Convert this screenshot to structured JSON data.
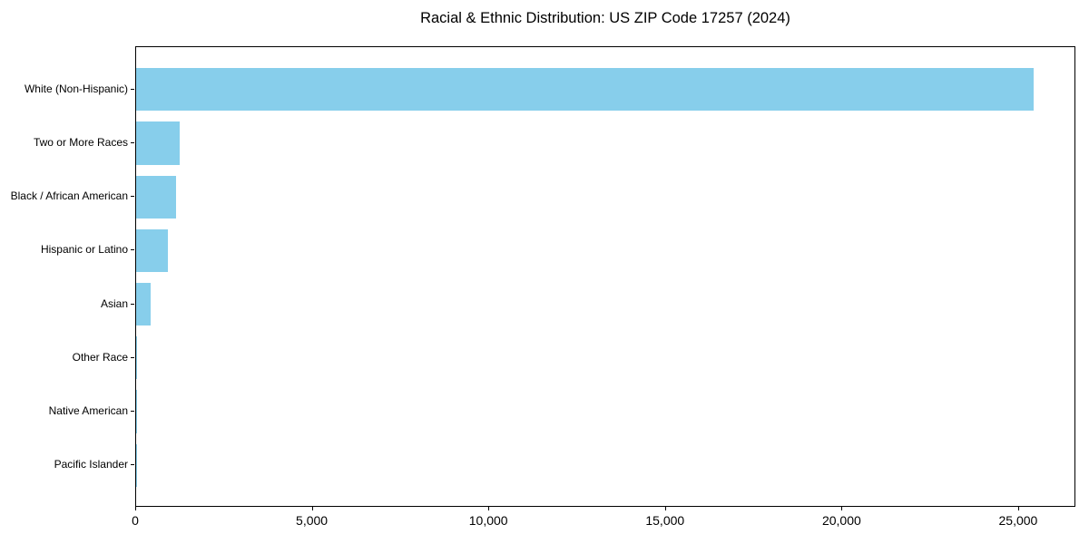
{
  "chart_data": {
    "type": "bar",
    "orientation": "horizontal",
    "title": "Racial & Ethnic Distribution: US ZIP Code 17257 (2024)",
    "categories": [
      "White (Non-Hispanic)",
      "Two or More Races",
      "Black / African American",
      "Hispanic or Latino",
      "Asian",
      "Other Race",
      "Native American",
      "Pacific Islander"
    ],
    "values": [
      25400,
      1230,
      1130,
      905,
      410,
      35,
      10,
      4
    ],
    "xlabel": "",
    "ylabel": "",
    "xlim": [
      0,
      26620
    ],
    "x_ticks": [
      0,
      5000,
      10000,
      15000,
      20000,
      25000
    ],
    "x_tick_labels": [
      "0",
      "5,000",
      "10,000",
      "15,000",
      "20,000",
      "25,000"
    ],
    "bar_color": "#87CEEB",
    "axis_color": "#000000",
    "background_color": "#ffffff",
    "grid": false,
    "legend": "none",
    "bar_height_fraction": 0.8
  }
}
